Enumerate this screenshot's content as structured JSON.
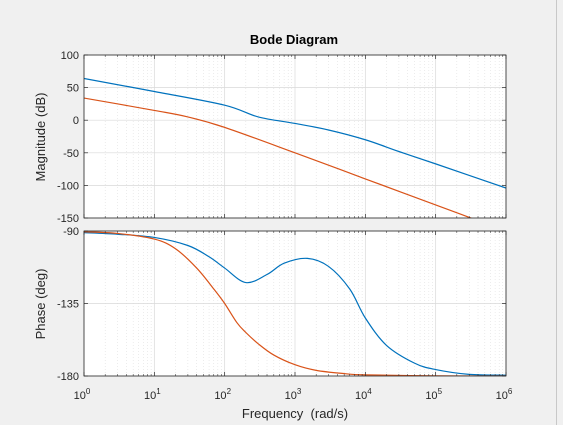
{
  "chart_data": {
    "type": "line",
    "title": "Bode Diagram",
    "xlabel": "Frequency  (rad/s)",
    "x_scale": "log",
    "xlim": [
      1,
      1000000
    ],
    "x_ticks": [
      {
        "base": "10",
        "exp": "0"
      },
      {
        "base": "10",
        "exp": "1"
      },
      {
        "base": "10",
        "exp": "2"
      },
      {
        "base": "10",
        "exp": "3"
      },
      {
        "base": "10",
        "exp": "4"
      },
      {
        "base": "10",
        "exp": "5"
      },
      {
        "base": "10",
        "exp": "6"
      }
    ],
    "grid": true,
    "colors": {
      "series_1": "#0072bd",
      "series_2": "#d95319",
      "axes_bg": "#ffffff",
      "figure_bg": "#f0f0f0",
      "grid": "#d9d9d9",
      "axis_text": "#262626"
    },
    "magnitude": {
      "ylabel": "Magnitude (dB)",
      "ylim": [
        -150,
        100
      ],
      "y_ticks": [
        "100",
        "50",
        "0",
        "-50",
        "-100",
        "-150"
      ],
      "series": [
        {
          "color": "#0072bd",
          "x": [
            1,
            10,
            100,
            300,
            1000,
            3000,
            10000,
            30000,
            100000,
            1000000
          ],
          "y": [
            64,
            44,
            23,
            5,
            -5,
            -15,
            -30,
            -48,
            -67,
            -104
          ]
        },
        {
          "color": "#d95319",
          "x": [
            1,
            10,
            30,
            100,
            1000,
            10000,
            100000,
            1000000
          ],
          "y": [
            34,
            15,
            5,
            -11,
            -50,
            -90,
            -130,
            -170
          ]
        }
      ]
    },
    "phase": {
      "ylabel": "Phase (deg)",
      "ylim": [
        -180,
        -90
      ],
      "y_ticks": [
        "-90",
        "-135",
        "-180"
      ],
      "series": [
        {
          "color": "#0072bd",
          "x": [
            1,
            3,
            10,
            30,
            60,
            100,
            200,
            400,
            700,
            1500,
            3000,
            6000,
            10000,
            20000,
            50000,
            100000,
            300000,
            1000000
          ],
          "y": [
            -91,
            -92,
            -94,
            -99,
            -106,
            -113,
            -122,
            -117,
            -110,
            -107,
            -112,
            -126,
            -144,
            -161,
            -172,
            -176,
            -179,
            -179.5
          ]
        },
        {
          "color": "#d95319",
          "x": [
            1,
            3,
            10,
            20,
            40,
            70,
            100,
            150,
            200,
            300,
            500,
            1000,
            2000,
            5000,
            10000,
            100000,
            1000000
          ],
          "y": [
            -90.5,
            -91.5,
            -95,
            -101,
            -113,
            -126,
            -135,
            -147,
            -153,
            -160,
            -167,
            -173,
            -176.5,
            -178.5,
            -179.3,
            -179.9,
            -180
          ]
        }
      ]
    }
  }
}
